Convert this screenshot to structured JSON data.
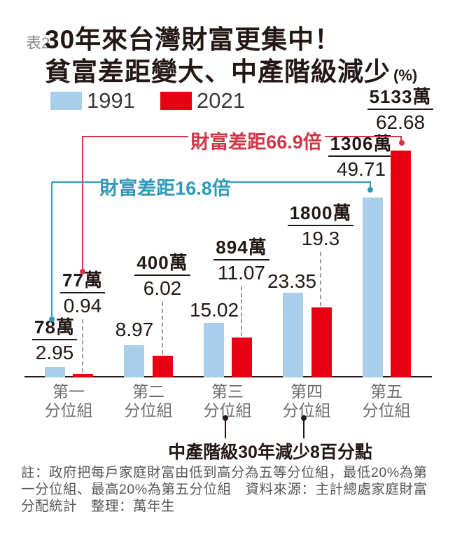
{
  "table_tag": "表2",
  "title": {
    "line1": "30年來台灣財富更集中！",
    "line2": "貧富差距變大、中產階級減少",
    "unit": "(%)"
  },
  "legend": {
    "items": [
      {
        "label": "1991",
        "color": "#a9cee9"
      },
      {
        "label": "2021",
        "color": "#e60012"
      }
    ]
  },
  "chart_data": {
    "type": "bar",
    "title": "30年來台灣財富更集中！貧富差距變大、中產階級減少",
    "unit": "%",
    "categories": [
      "第一分位組",
      "第二分位組",
      "第三分位組",
      "第四分位組",
      "第五分位組"
    ],
    "series": [
      {
        "name": "1991",
        "color": "#a9cee9",
        "values": [
          2.95,
          8.97,
          15.02,
          23.35,
          49.71
        ],
        "amount_labels": [
          "78萬",
          null,
          null,
          null,
          "1306萬"
        ]
      },
      {
        "name": "2021",
        "color": "#e60012",
        "values": [
          0.94,
          6.02,
          11.07,
          19.3,
          62.68
        ],
        "amount_labels": [
          "77萬",
          "400萬",
          "894萬",
          "1800萬",
          "5133萬"
        ]
      }
    ],
    "ylim": [
      0,
      65
    ],
    "grid": false,
    "legend_position": "top-left",
    "annotations": {
      "wealth_gap_2021": {
        "text": "財富差距66.9倍",
        "color": "#cf3747"
      },
      "wealth_gap_1991": {
        "text": "財富差距16.8倍",
        "color": "#2f9ab8"
      },
      "middle_class": {
        "text": "中產階級30年減少8百分點"
      }
    }
  },
  "footnote": "註：政府把每戶家庭財富由低到高分為五等分位組，最低20%為第一分位組、最高20%為第五分位組　資料來源：主計總處家庭財富分配統計　整理：萬年生"
}
